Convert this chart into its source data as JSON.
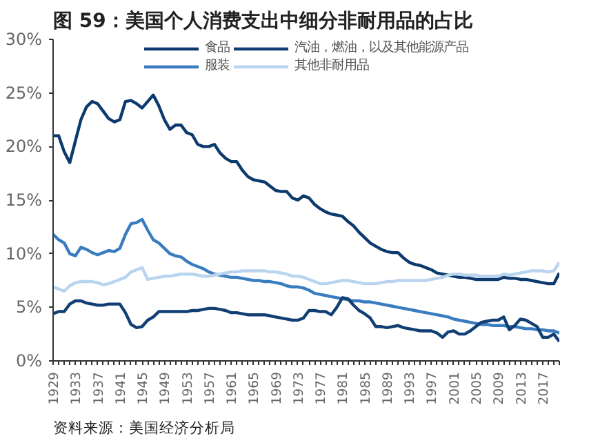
{
  "chart_data": {
    "type": "line",
    "title": "图 59：美国个人消费支出中细分非耐用品的占比",
    "annotations": [
      "资料来源：美国经济分析局"
    ],
    "x": [
      1929,
      1930,
      1931,
      1932,
      1933,
      1934,
      1935,
      1936,
      1937,
      1938,
      1939,
      1940,
      1941,
      1942,
      1943,
      1944,
      1945,
      1946,
      1947,
      1948,
      1949,
      1950,
      1951,
      1952,
      1953,
      1954,
      1955,
      1956,
      1957,
      1958,
      1959,
      1960,
      1961,
      1962,
      1963,
      1964,
      1965,
      1966,
      1967,
      1968,
      1969,
      1970,
      1971,
      1972,
      1973,
      1974,
      1975,
      1976,
      1977,
      1978,
      1979,
      1980,
      1981,
      1982,
      1983,
      1984,
      1985,
      1986,
      1987,
      1988,
      1989,
      1990,
      1991,
      1992,
      1993,
      1994,
      1995,
      1996,
      1997,
      1998,
      1999,
      2000,
      2001,
      2002,
      2003,
      2004,
      2005,
      2006,
      2007,
      2008,
      2009,
      2010,
      2011,
      2012,
      2013,
      2014,
      2015,
      2016,
      2017,
      2018,
      2019,
      2020
    ],
    "series": [
      {
        "name": "食品",
        "color": "#0d3a6e",
        "values": [
          21.0,
          21.0,
          19.5,
          18.5,
          20.5,
          22.5,
          23.7,
          24.2,
          24.0,
          23.3,
          22.6,
          22.3,
          22.5,
          24.2,
          24.3,
          24.0,
          23.6,
          24.2,
          24.8,
          23.8,
          22.5,
          21.6,
          22.0,
          22.0,
          21.3,
          21.1,
          20.2,
          20.0,
          20.0,
          20.2,
          19.4,
          18.9,
          18.6,
          18.6,
          17.8,
          17.2,
          16.9,
          16.8,
          16.7,
          16.3,
          15.9,
          15.8,
          15.8,
          15.2,
          15.0,
          15.4,
          15.2,
          14.6,
          14.2,
          13.9,
          13.7,
          13.6,
          13.5,
          13.0,
          12.6,
          12.0,
          11.5,
          11.0,
          10.7,
          10.4,
          10.2,
          10.1,
          10.1,
          9.6,
          9.2,
          9.0,
          8.9,
          8.7,
          8.5,
          8.2,
          8.1,
          8.0,
          7.9,
          7.8,
          7.8,
          7.7,
          7.6,
          7.6,
          7.6,
          7.6,
          7.6,
          7.8,
          7.7,
          7.7,
          7.6,
          7.6,
          7.5,
          7.4,
          7.3,
          7.2,
          7.2,
          8.2
        ]
      },
      {
        "name": "服装",
        "color": "#3a7cc0",
        "values": [
          11.8,
          11.3,
          11.0,
          10.0,
          9.8,
          10.6,
          10.4,
          10.1,
          9.9,
          10.1,
          10.3,
          10.2,
          10.5,
          11.8,
          12.8,
          12.9,
          13.2,
          12.2,
          11.3,
          11.0,
          10.5,
          10.0,
          9.8,
          9.7,
          9.3,
          9.0,
          8.8,
          8.6,
          8.3,
          8.1,
          8.0,
          7.9,
          7.8,
          7.8,
          7.7,
          7.6,
          7.5,
          7.5,
          7.4,
          7.4,
          7.3,
          7.2,
          7.0,
          6.9,
          6.9,
          6.8,
          6.6,
          6.3,
          6.2,
          6.1,
          6.0,
          5.9,
          5.8,
          5.7,
          5.6,
          5.6,
          5.5,
          5.5,
          5.4,
          5.3,
          5.2,
          5.1,
          5.0,
          4.9,
          4.8,
          4.7,
          4.6,
          4.5,
          4.4,
          4.3,
          4.2,
          4.1,
          3.9,
          3.8,
          3.7,
          3.6,
          3.5,
          3.4,
          3.4,
          3.3,
          3.3,
          3.3,
          3.2,
          3.2,
          3.1,
          3.0,
          3.0,
          2.9,
          2.9,
          2.8,
          2.8,
          2.6
        ]
      },
      {
        "name": "汽油，燃油，以及其他能源产品",
        "color": "#123f73",
        "values": [
          4.4,
          4.6,
          4.6,
          5.3,
          5.6,
          5.6,
          5.4,
          5.3,
          5.2,
          5.2,
          5.3,
          5.3,
          5.3,
          4.5,
          3.4,
          3.1,
          3.2,
          3.8,
          4.1,
          4.6,
          4.6,
          4.6,
          4.6,
          4.6,
          4.6,
          4.7,
          4.7,
          4.8,
          4.9,
          4.9,
          4.8,
          4.7,
          4.5,
          4.5,
          4.4,
          4.3,
          4.3,
          4.3,
          4.3,
          4.2,
          4.1,
          4.0,
          3.9,
          3.8,
          3.8,
          4.0,
          4.7,
          4.7,
          4.6,
          4.6,
          4.3,
          5.0,
          5.9,
          5.8,
          5.2,
          4.7,
          4.4,
          4.0,
          3.2,
          3.2,
          3.1,
          3.2,
          3.3,
          3.1,
          3.0,
          2.9,
          2.8,
          2.8,
          2.8,
          2.6,
          2.2,
          2.7,
          2.8,
          2.5,
          2.5,
          2.8,
          3.2,
          3.6,
          3.7,
          3.8,
          3.8,
          4.1,
          2.9,
          3.3,
          3.9,
          3.8,
          3.5,
          3.2,
          2.2,
          2.2,
          2.5,
          1.8
        ]
      },
      {
        "name": "其他非耐用品",
        "color": "#b8d4ee",
        "values": [
          6.9,
          6.7,
          6.5,
          7.0,
          7.3,
          7.4,
          7.4,
          7.4,
          7.3,
          7.1,
          7.2,
          7.4,
          7.6,
          7.8,
          8.3,
          8.5,
          8.7,
          7.6,
          7.7,
          7.8,
          7.9,
          7.9,
          8.0,
          8.1,
          8.1,
          8.1,
          8.0,
          7.9,
          7.9,
          8.0,
          8.1,
          8.2,
          8.3,
          8.3,
          8.4,
          8.4,
          8.4,
          8.4,
          8.4,
          8.3,
          8.3,
          8.2,
          8.1,
          7.9,
          7.9,
          7.8,
          7.6,
          7.4,
          7.2,
          7.2,
          7.3,
          7.4,
          7.5,
          7.5,
          7.4,
          7.3,
          7.2,
          7.2,
          7.2,
          7.3,
          7.4,
          7.4,
          7.5,
          7.5,
          7.5,
          7.5,
          7.5,
          7.5,
          7.6,
          7.7,
          7.8,
          8.0,
          8.1,
          8.1,
          8.0,
          8.0,
          8.0,
          7.9,
          7.9,
          7.9,
          7.9,
          8.1,
          8.0,
          8.1,
          8.2,
          8.3,
          8.4,
          8.4,
          8.4,
          8.3,
          8.4,
          9.2
        ]
      }
    ],
    "xlim": [
      1929,
      2020
    ],
    "xticks": [
      1929,
      1933,
      1937,
      1941,
      1945,
      1949,
      1953,
      1957,
      1961,
      1965,
      1969,
      1973,
      1977,
      1981,
      1985,
      1989,
      1993,
      1997,
      2001,
      2005,
      2009,
      2013,
      2017
    ],
    "ylim": [
      0,
      30
    ],
    "yticks": [
      {
        "value": 0,
        "label": "0%"
      },
      {
        "value": 5,
        "label": "5%"
      },
      {
        "value": 10,
        "label": "10%"
      },
      {
        "value": 15,
        "label": "15%"
      },
      {
        "value": 20,
        "label": "20%"
      },
      {
        "value": 25,
        "label": "25%"
      },
      {
        "value": 30,
        "label": "30%"
      }
    ],
    "grid": false,
    "legend": "top",
    "line_style": "solid",
    "marker": "none"
  }
}
